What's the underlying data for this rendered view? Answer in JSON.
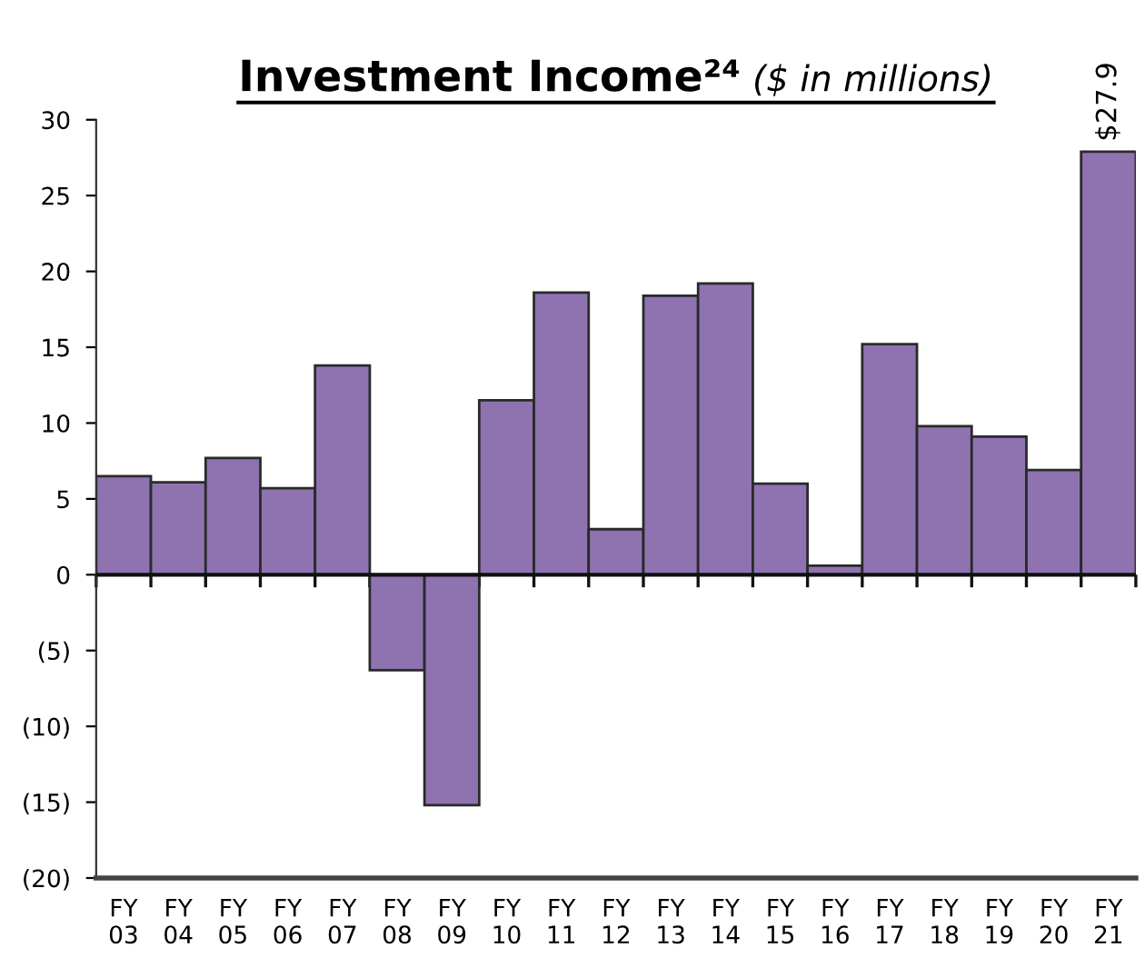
{
  "chart_data": {
    "type": "bar",
    "title": "Investment Income²⁴",
    "subtitle": "($ in millions)",
    "categories": [
      "FY\n03",
      "FY\n04",
      "FY\n05",
      "FY\n06",
      "FY\n07",
      "FY\n08",
      "FY\n09",
      "FY\n10",
      "FY\n11",
      "FY\n12",
      "FY\n13",
      "FY\n14",
      "FY\n15",
      "FY\n16",
      "FY\n17",
      "FY\n18",
      "FY\n19",
      "FY\n20",
      "FY\n21"
    ],
    "values": [
      6.5,
      6.1,
      7.7,
      5.7,
      13.8,
      -6.3,
      -15.2,
      11.5,
      18.6,
      3.0,
      18.4,
      19.2,
      6.0,
      0.6,
      15.2,
      9.8,
      9.1,
      6.9,
      27.9
    ],
    "color": "#8f73b1",
    "value_labels": [
      null,
      null,
      null,
      null,
      null,
      null,
      null,
      null,
      null,
      null,
      null,
      null,
      null,
      null,
      null,
      null,
      null,
      null,
      "$27.9"
    ],
    "ylim": [
      -20,
      30
    ],
    "yticks": [
      {
        "value": -20,
        "label": "(20)"
      },
      {
        "value": -15,
        "label": "(15)"
      },
      {
        "value": -10,
        "label": "(10)"
      },
      {
        "value": -5,
        "label": "(5)"
      },
      0,
      5,
      10,
      15,
      20,
      25,
      30
    ],
    "ref_lines": [
      {
        "axis": "y",
        "value": 0,
        "color": "#111111"
      }
    ],
    "grid": false
  }
}
